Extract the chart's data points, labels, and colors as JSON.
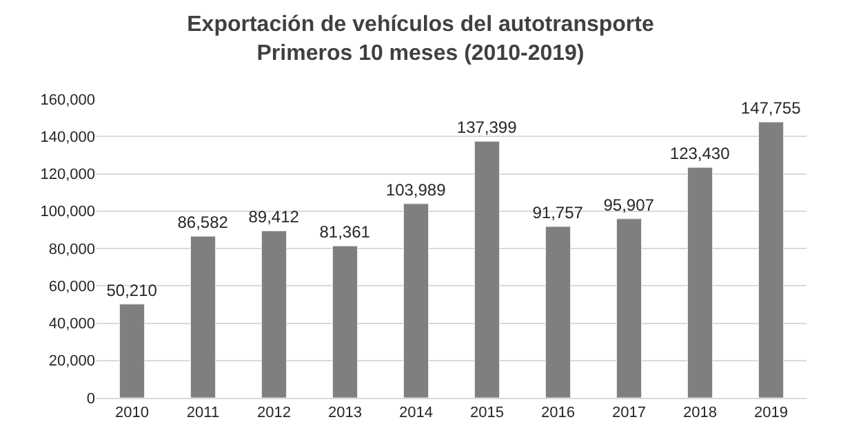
{
  "chart_data": {
    "type": "bar",
    "title": "Exportación de vehículos del autotransporte\nPrimeros 10 meses (2010-2019)",
    "categories": [
      "2010",
      "2011",
      "2012",
      "2013",
      "2014",
      "2015",
      "2016",
      "2017",
      "2018",
      "2019"
    ],
    "values": [
      50210,
      86582,
      89412,
      81361,
      103989,
      137399,
      91757,
      95907,
      123430,
      147755
    ],
    "color": "#7f7f7f",
    "ylim": [
      0,
      160000
    ],
    "yticks": [
      {
        "value": 0,
        "label": "0"
      },
      {
        "value": 20000,
        "label": "20,000"
      },
      {
        "value": 40000,
        "label": "40,000"
      },
      {
        "value": 60000,
        "label": "60,000"
      },
      {
        "value": 80000,
        "label": "80,000"
      },
      {
        "value": 100000,
        "label": "100,000"
      },
      {
        "value": 120000,
        "label": "120,000"
      },
      {
        "value": 140000,
        "label": "140,000"
      },
      {
        "value": 160000,
        "label": "160,000"
      }
    ],
    "value_labels": [
      "50,210",
      "86,582",
      "89,412",
      "81,361",
      "103,989",
      "137,399",
      "91,757",
      "95,907",
      "123,430",
      "147,755"
    ],
    "grid": "y"
  }
}
